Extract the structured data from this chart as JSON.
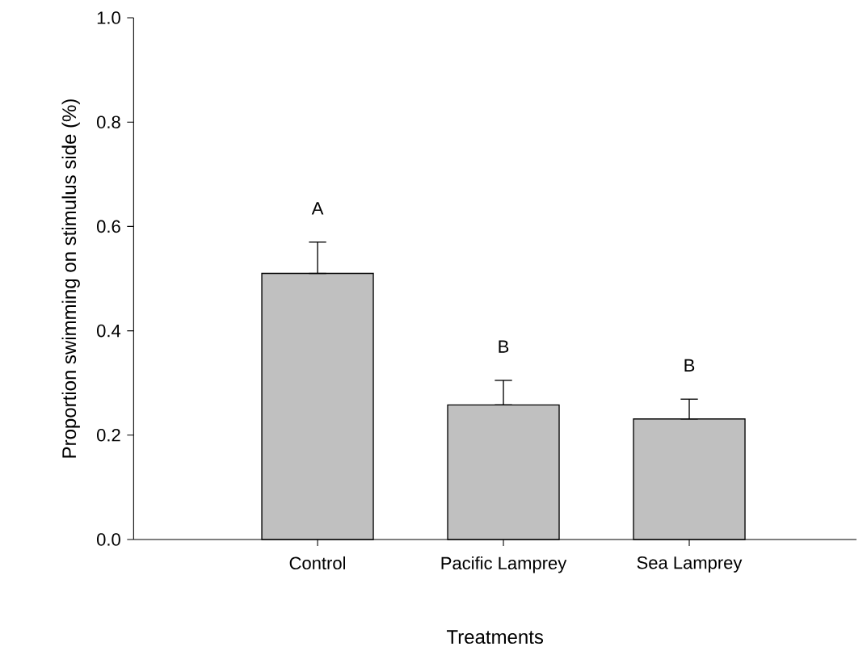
{
  "chart_data": {
    "type": "bar",
    "xlabel": "Treatments",
    "ylabel": "Proportion swimming on stimulus side (%)",
    "categories": [
      "Control",
      "Pacific Lamprey",
      "Sea Lamprey"
    ],
    "values": [
      0.51,
      0.258,
      0.231
    ],
    "color": "#c0c0c0",
    "errors": [
      [
        0.51,
        0.57
      ],
      [
        0.258,
        0.305
      ],
      [
        0.231,
        0.269
      ]
    ],
    "ylim": [
      0,
      1.0
    ],
    "yticks": [
      {
        "value": 0,
        "label": "0.0"
      },
      0.2,
      0.4,
      0.6,
      0.8,
      {
        "value": 1.0,
        "label": "1.0"
      }
    ],
    "annotations": [
      "A",
      "B",
      "B"
    ]
  }
}
